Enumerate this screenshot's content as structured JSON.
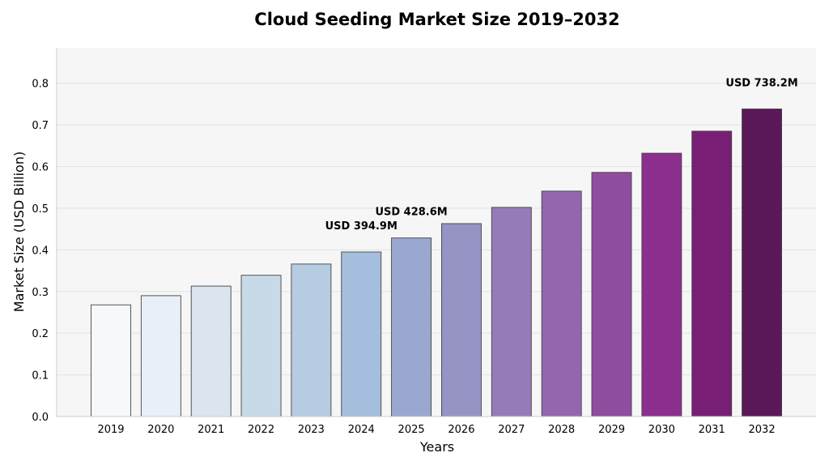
{
  "chart_data": {
    "type": "bar",
    "title": "Cloud Seeding Market Size 2019–2032",
    "xlabel": "Years",
    "ylabel": "Market Size (USD Billion)",
    "ylim": [
      0,
      0.885
    ],
    "yticks": [
      "0.0",
      "0.1",
      "0.2",
      "0.3",
      "0.4",
      "0.5",
      "0.6",
      "0.7",
      "0.8"
    ],
    "grid": true,
    "categories": [
      "2019",
      "2020",
      "2021",
      "2022",
      "2023",
      "2024",
      "2025",
      "2026",
      "2027",
      "2028",
      "2029",
      "2030",
      "2031",
      "2032"
    ],
    "values": [
      0.268,
      0.29,
      0.313,
      0.339,
      0.366,
      0.3949,
      0.4286,
      0.463,
      0.502,
      0.541,
      0.586,
      0.632,
      0.685,
      0.7382
    ],
    "colors": [
      "#f5f9fa",
      "#e8eff8",
      "#dae5f0",
      "#c8dae8",
      "#b6cce3",
      "#a6bedd",
      "#9aa8d1",
      "#9694c5",
      "#957bb8",
      "#9366ae",
      "#8f4d9f",
      "#8c2f8f",
      "#781f75",
      "#5b1858"
    ],
    "annotations": [
      {
        "category": "2024",
        "text": "USD 394.9M"
      },
      {
        "category": "2025",
        "text": "USD 428.6M"
      },
      {
        "category": "2032",
        "text": "USD 738.2M"
      }
    ],
    "plot_background": "#f6f6f6"
  }
}
